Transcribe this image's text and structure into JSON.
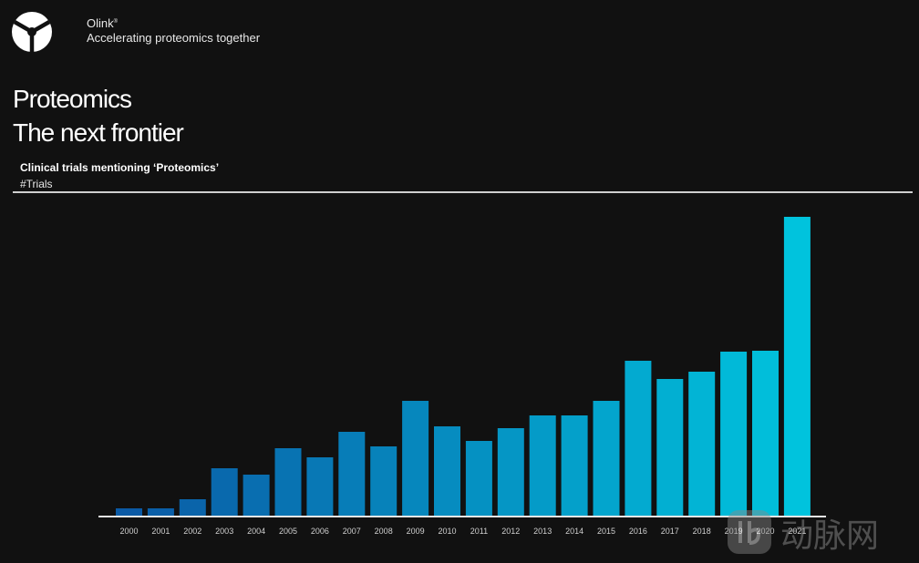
{
  "header": {
    "brand_name": "Olink",
    "brand_mark": "®",
    "tagline": "Accelerating proteomics together"
  },
  "page": {
    "title_line1": "Proteomics",
    "title_line2": "The next frontier"
  },
  "watermark": {
    "text": "动脉网"
  },
  "colors": {
    "bar_start": "#0b5aa5",
    "bar_end": "#00c3dd",
    "background": "#111111"
  },
  "chart_data": {
    "type": "bar",
    "title": "Clinical trials mentioning ‘Proteomics’",
    "ylabel": "#Trials",
    "xlabel": "",
    "categories": [
      "2000",
      "2001",
      "2002",
      "2003",
      "2004",
      "2005",
      "2006",
      "2007",
      "2008",
      "2009",
      "2010",
      "2011",
      "2012",
      "2013",
      "2014",
      "2015",
      "2016",
      "2017",
      "2018",
      "2019",
      "2020",
      "2021"
    ],
    "values": [
      8,
      8,
      18,
      52,
      45,
      74,
      64,
      92,
      76,
      126,
      98,
      82,
      96,
      110,
      110,
      126,
      170,
      150,
      158,
      180,
      181,
      328
    ],
    "ylim": [
      0,
      330
    ],
    "grid": false,
    "legend": "none"
  }
}
